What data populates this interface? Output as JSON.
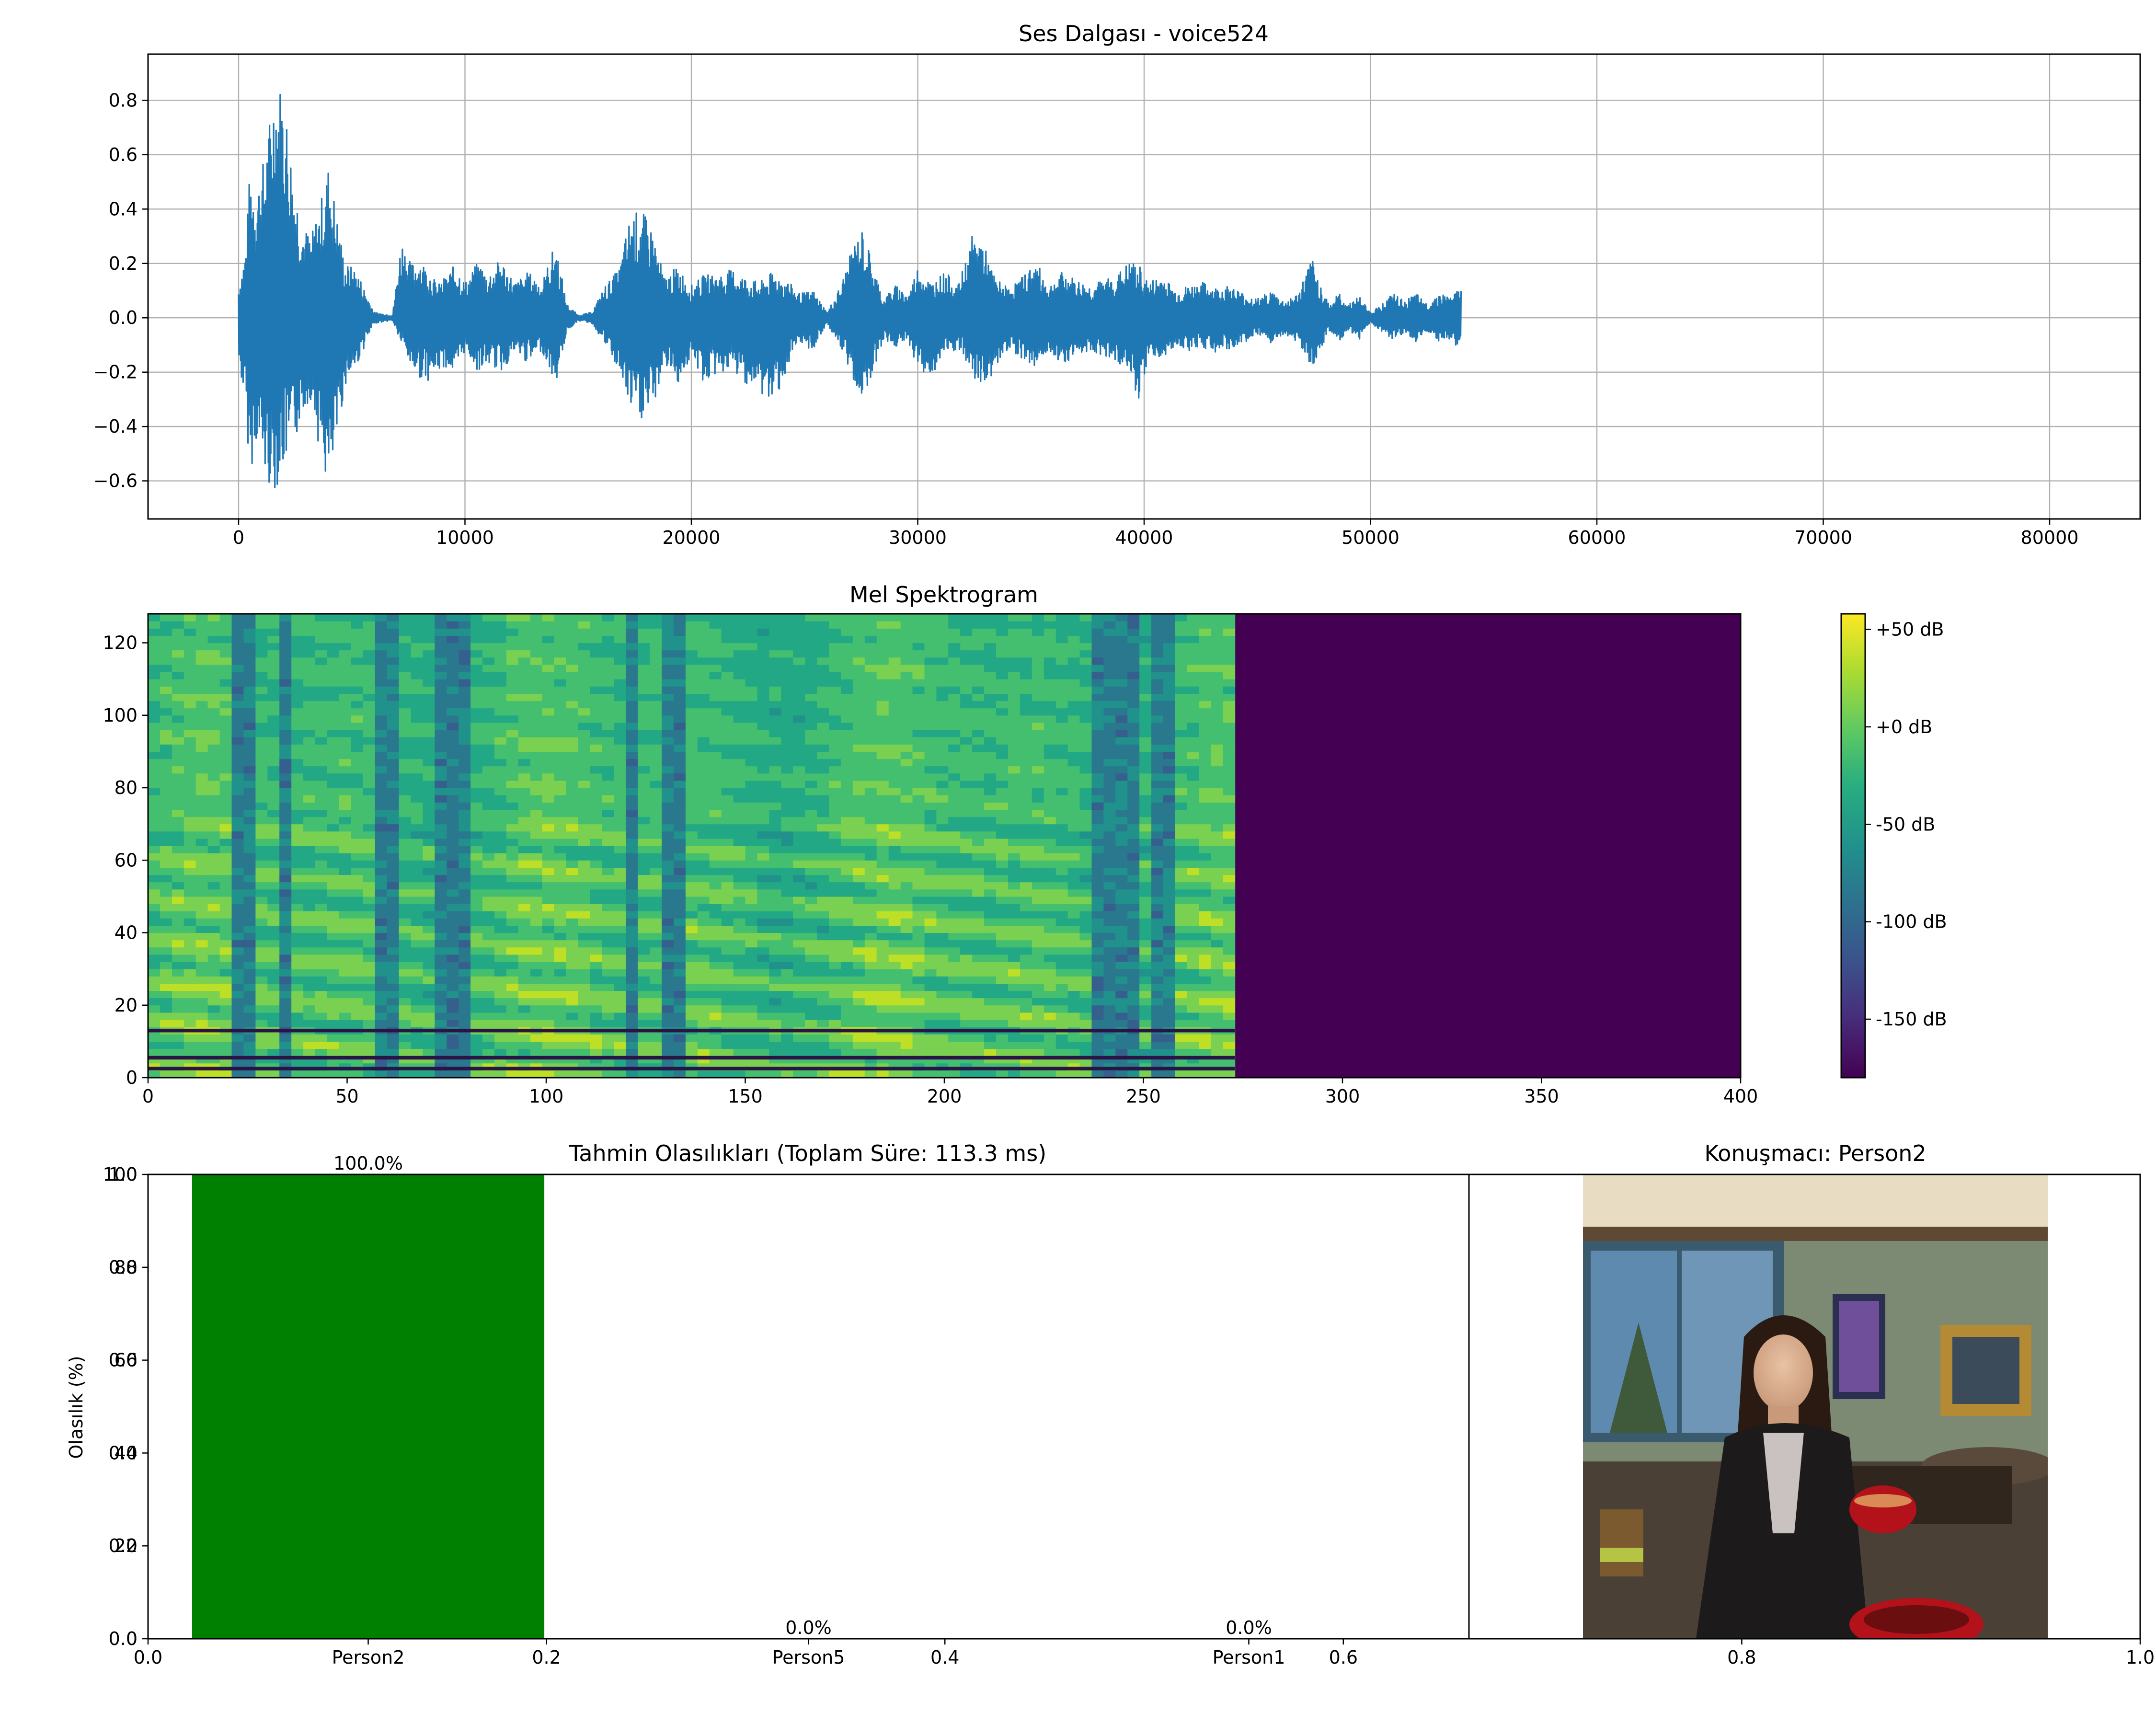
{
  "chart_data": [
    {
      "id": "waveform",
      "type": "line",
      "title": "Ses Dalgası - voice524",
      "xlim": [
        -4000,
        84000
      ],
      "ylim": [
        -0.74,
        0.97
      ],
      "xticks": [
        0,
        10000,
        20000,
        30000,
        40000,
        50000,
        60000,
        70000,
        80000
      ],
      "yticks": [
        -0.6,
        -0.4,
        -0.2,
        0.0,
        0.2,
        0.4,
        0.6,
        0.8
      ],
      "ytick_labels": [
        "−0.6",
        "−0.4",
        "−0.2",
        "0.0",
        "0.2",
        "0.4",
        "0.6",
        "0.8"
      ],
      "grid": true,
      "color": "#1f77b4",
      "signal_end": 54500,
      "x_end": 80000,
      "envelope": {
        "x": [
          0,
          300,
          500,
          800,
          1200,
          1600,
          2000,
          2400,
          2800,
          3200,
          3600,
          4000,
          4300,
          4700,
          5200,
          6000,
          6800,
          7200,
          7600,
          8000,
          8400,
          8800,
          9200,
          9600,
          10000,
          10600,
          11000,
          11600,
          12200,
          12800,
          13400,
          14000,
          14500,
          15000,
          15600,
          16200,
          16800,
          17300,
          17800,
          18300,
          18800,
          19400,
          20000,
          20600,
          21200,
          21800,
          22400,
          23000,
          23600,
          24200,
          24800,
          25400,
          26000,
          26600,
          27200,
          27600,
          28000,
          28500,
          29000,
          29600,
          30000,
          30600,
          31200,
          31800,
          32400,
          32800,
          33400,
          34000,
          34600,
          35200,
          35800,
          36400,
          37000,
          37600,
          38200,
          38800,
          39400,
          39800,
          40200,
          40800,
          41400,
          42000,
          42600,
          43200,
          43800,
          44400,
          45000,
          45600,
          46200,
          46800,
          47400,
          47800,
          48200,
          48600,
          49000,
          49500,
          50000,
          50500,
          51000,
          51500,
          52000,
          52500,
          53000,
          53500,
          54000,
          54500
        ],
        "top": [
          0.12,
          0.25,
          0.55,
          0.48,
          0.62,
          0.9,
          0.85,
          0.55,
          0.35,
          0.3,
          0.42,
          0.58,
          0.4,
          0.2,
          0.18,
          0.02,
          0.01,
          0.3,
          0.2,
          0.22,
          0.18,
          0.12,
          0.16,
          0.2,
          0.13,
          0.21,
          0.16,
          0.22,
          0.13,
          0.17,
          0.13,
          0.28,
          0.05,
          0.01,
          0.02,
          0.12,
          0.18,
          0.38,
          0.4,
          0.32,
          0.15,
          0.19,
          0.12,
          0.16,
          0.16,
          0.18,
          0.15,
          0.13,
          0.17,
          0.14,
          0.09,
          0.1,
          0.02,
          0.12,
          0.28,
          0.33,
          0.2,
          0.07,
          0.12,
          0.09,
          0.19,
          0.13,
          0.17,
          0.12,
          0.3,
          0.3,
          0.15,
          0.11,
          0.15,
          0.21,
          0.12,
          0.17,
          0.14,
          0.12,
          0.14,
          0.16,
          0.21,
          0.19,
          0.13,
          0.16,
          0.1,
          0.12,
          0.13,
          0.11,
          0.12,
          0.09,
          0.07,
          0.1,
          0.06,
          0.09,
          0.22,
          0.12,
          0.05,
          0.09,
          0.05,
          0.08,
          0.02,
          0.05,
          0.09,
          0.06,
          0.09,
          0.05,
          0.09,
          0.08,
          0.11
        ],
        "bot": [
          -0.17,
          -0.32,
          -0.58,
          -0.45,
          -0.6,
          -0.64,
          -0.55,
          -0.5,
          -0.35,
          -0.3,
          -0.5,
          -0.66,
          -0.48,
          -0.25,
          -0.18,
          -0.02,
          -0.01,
          -0.1,
          -0.18,
          -0.22,
          -0.23,
          -0.2,
          -0.18,
          -0.22,
          -0.12,
          -0.2,
          -0.17,
          -0.2,
          -0.13,
          -0.17,
          -0.12,
          -0.25,
          -0.05,
          -0.01,
          -0.02,
          -0.1,
          -0.2,
          -0.34,
          -0.38,
          -0.34,
          -0.17,
          -0.24,
          -0.15,
          -0.25,
          -0.2,
          -0.2,
          -0.24,
          -0.28,
          -0.32,
          -0.2,
          -0.1,
          -0.12,
          -0.02,
          -0.12,
          -0.24,
          -0.3,
          -0.2,
          -0.08,
          -0.11,
          -0.09,
          -0.19,
          -0.22,
          -0.14,
          -0.12,
          -0.22,
          -0.26,
          -0.2,
          -0.11,
          -0.15,
          -0.18,
          -0.12,
          -0.17,
          -0.14,
          -0.12,
          -0.14,
          -0.16,
          -0.21,
          -0.32,
          -0.13,
          -0.16,
          -0.1,
          -0.12,
          -0.11,
          -0.13,
          -0.12,
          -0.09,
          -0.07,
          -0.1,
          -0.06,
          -0.09,
          -0.18,
          -0.12,
          -0.05,
          -0.09,
          -0.05,
          -0.08,
          -0.02,
          -0.05,
          -0.09,
          -0.06,
          -0.09,
          -0.05,
          -0.09,
          -0.08,
          -0.12
        ]
      }
    },
    {
      "id": "mel",
      "type": "heatmap",
      "title": "Mel Spektrogram",
      "xlim": [
        0,
        400
      ],
      "ylim": [
        0,
        128
      ],
      "xticks": [
        0,
        50,
        100,
        150,
        200,
        250,
        300,
        350,
        400
      ],
      "yticks": [
        0,
        20,
        40,
        60,
        80,
        100,
        120
      ],
      "signal_end_frame": 273,
      "colorbar": {
        "range": [
          -180,
          58
        ],
        "ticks": [
          50,
          0,
          -50,
          -100,
          -150
        ],
        "tick_labels": [
          "+50 dB",
          "+0 dB",
          "-50 dB",
          "-100 dB",
          "-150 dB"
        ],
        "colormap": "viridis"
      },
      "dark_bands": [
        2.5,
        5.5,
        13
      ]
    },
    {
      "id": "probabilities",
      "type": "bar",
      "title": "Tahmin Olasılıkları (Toplam Süre: 113.3 ms)",
      "ylabel": "Olasılık (%)",
      "categories": [
        "Person2",
        "Person5",
        "Person1"
      ],
      "values": [
        100.0,
        0.0,
        0.0
      ],
      "value_labels": [
        "100.0%",
        "0.0%",
        "0.0%"
      ],
      "ylim": [
        0,
        100
      ],
      "yticks": [
        0,
        20,
        40,
        60,
        80,
        100
      ],
      "yticks_unit": [
        0.0,
        0.2,
        0.4,
        0.6,
        0.8,
        1.0
      ],
      "ytick_labels_overlap": [
        "0.0",
        "0.2",
        "0.4",
        "0.6",
        "0.8",
        "1.0"
      ],
      "ytick_labels_pct": [
        "0",
        "20",
        "40",
        "60",
        "80",
        "100"
      ],
      "xticks_unit": [
        0.0,
        0.2,
        0.4,
        0.6,
        0.8,
        1.0
      ],
      "xtick_labels": [
        "0.0",
        "0.2",
        "0.4",
        "0.6",
        "0.8",
        "1.0"
      ],
      "bar_color": "#008000"
    }
  ],
  "speaker_panel": {
    "title": "Konuşmacı: Person2"
  }
}
